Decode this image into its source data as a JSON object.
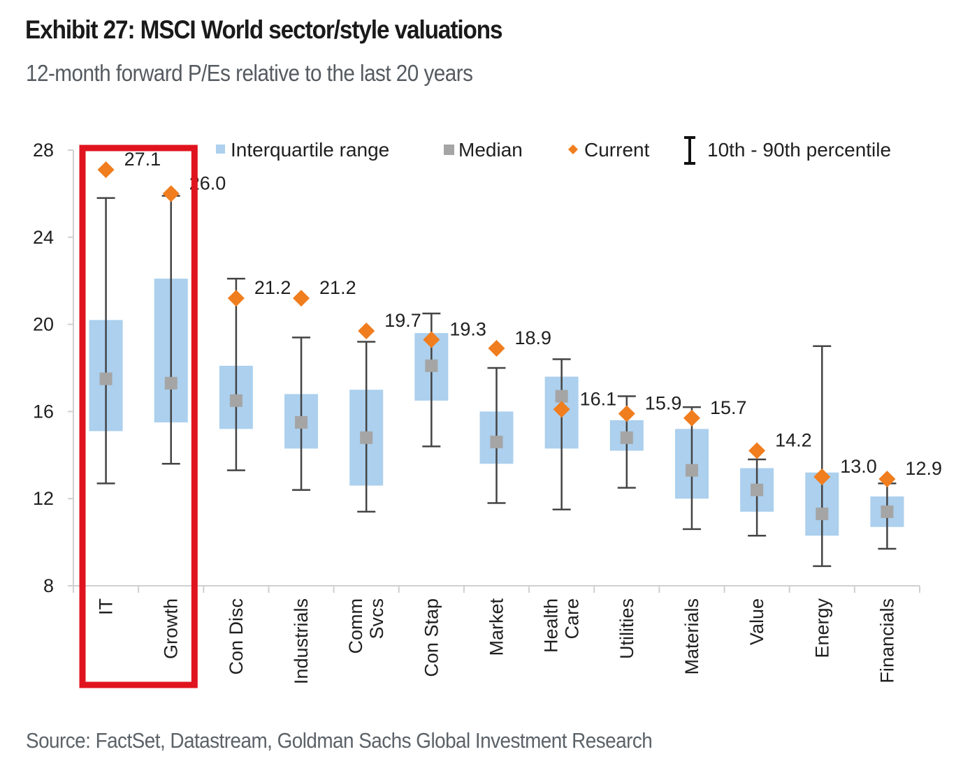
{
  "header": {
    "title": "Exhibit 27: MSCI World sector/style valuations",
    "subtitle": "12-month forward P/Es relative to the last 20 years"
  },
  "footer": {
    "source": "Source: FactSet, Datastream, Goldman Sachs Global Investment Research"
  },
  "colors": {
    "iqr": "#acd0ee",
    "median": "#a5a5a5",
    "current": "#f07d1e",
    "whisker": "#444444",
    "highlight": "#e0141e",
    "axis": "#d0d0d0"
  },
  "highlight": {
    "categories": [
      "IT",
      "Growth"
    ]
  },
  "chart_data": {
    "type": "box",
    "title": "Exhibit 27: MSCI World sector/style valuations",
    "subtitle": "12-month forward P/Es relative to the last 20 years",
    "xlabel": "",
    "ylabel": "",
    "ylim": [
      8,
      28
    ],
    "yticks": [
      8,
      12,
      16,
      20,
      24,
      28
    ],
    "grid": false,
    "legend_position": "top",
    "legend": [
      {
        "key": "iqr",
        "label": "Interquartile range"
      },
      {
        "key": "median",
        "label": "Median"
      },
      {
        "key": "current",
        "label": "Current"
      },
      {
        "key": "range",
        "label": "10th - 90th percentile"
      }
    ],
    "categories": [
      {
        "name": "IT",
        "lines": [
          "IT"
        ],
        "p10": 12.7,
        "q1": 15.1,
        "median": 17.5,
        "q3": 20.2,
        "p90": 25.8,
        "current": 27.1
      },
      {
        "name": "Growth",
        "lines": [
          "Growth"
        ],
        "p10": 13.6,
        "q1": 15.5,
        "median": 17.3,
        "q3": 22.1,
        "p90": 25.9,
        "current": 26.0
      },
      {
        "name": "Con Disc",
        "lines": [
          "Con Disc"
        ],
        "p10": 13.3,
        "q1": 15.2,
        "median": 16.5,
        "q3": 18.1,
        "p90": 22.1,
        "current": 21.2
      },
      {
        "name": "Industrials",
        "lines": [
          "Industrials"
        ],
        "p10": 12.4,
        "q1": 14.3,
        "median": 15.5,
        "q3": 16.8,
        "p90": 19.4,
        "current": 21.2
      },
      {
        "name": "Comm Svcs",
        "lines": [
          "Comm",
          "Svcs"
        ],
        "p10": 11.4,
        "q1": 12.6,
        "median": 14.8,
        "q3": 17.0,
        "p90": 19.2,
        "current": 19.7
      },
      {
        "name": "Con Stap",
        "lines": [
          "Con Stap"
        ],
        "p10": 14.4,
        "q1": 16.5,
        "median": 18.1,
        "q3": 19.6,
        "p90": 20.5,
        "current": 19.3
      },
      {
        "name": "Market",
        "lines": [
          "Market"
        ],
        "p10": 11.8,
        "q1": 13.6,
        "median": 14.6,
        "q3": 16.0,
        "p90": 18.0,
        "current": 18.9
      },
      {
        "name": "Health Care",
        "lines": [
          "Health",
          "Care"
        ],
        "p10": 11.5,
        "q1": 14.3,
        "median": 16.7,
        "q3": 17.6,
        "p90": 18.4,
        "current": 16.1
      },
      {
        "name": "Utilities",
        "lines": [
          "Utilities"
        ],
        "p10": 12.5,
        "q1": 14.2,
        "median": 14.8,
        "q3": 15.6,
        "p90": 16.7,
        "current": 15.9
      },
      {
        "name": "Materials",
        "lines": [
          "Materials"
        ],
        "p10": 10.6,
        "q1": 12.0,
        "median": 13.3,
        "q3": 15.2,
        "p90": 16.2,
        "current": 15.7
      },
      {
        "name": "Value",
        "lines": [
          "Value"
        ],
        "p10": 10.3,
        "q1": 11.4,
        "median": 12.4,
        "q3": 13.4,
        "p90": 13.8,
        "current": 14.2
      },
      {
        "name": "Energy",
        "lines": [
          "Energy"
        ],
        "p10": 8.9,
        "q1": 10.3,
        "median": 11.3,
        "q3": 13.2,
        "p90": 19.0,
        "current": 13.0
      },
      {
        "name": "Financials",
        "lines": [
          "Financials"
        ],
        "p10": 9.7,
        "q1": 10.7,
        "median": 11.4,
        "q3": 12.1,
        "p90": 12.7,
        "current": 12.9
      }
    ]
  }
}
